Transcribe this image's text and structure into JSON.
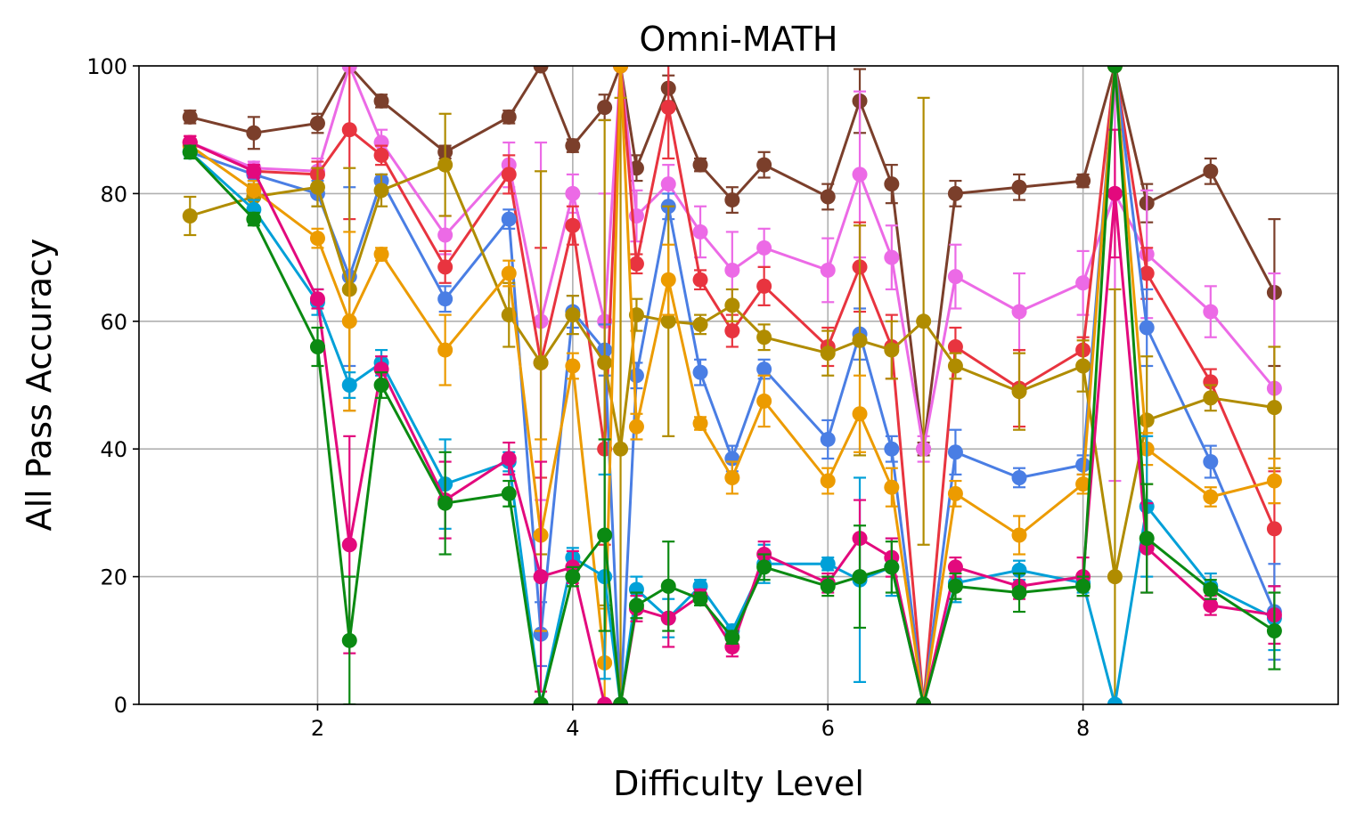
{
  "chart_data": {
    "type": "line",
    "title": "Omni-MATH",
    "xlabel": "Difficulty Level",
    "ylabel": "All Pass Accuracy",
    "xlim": [
      0.6,
      10.0
    ],
    "ylim": [
      0,
      100
    ],
    "xticks": [
      2,
      4,
      6,
      8
    ],
    "yticks": [
      0,
      20,
      40,
      60,
      80,
      100
    ],
    "grid": true,
    "x": [
      1.0,
      1.5,
      2.0,
      2.25,
      2.5,
      3.0,
      3.5,
      3.75,
      4.0,
      4.25,
      4.375,
      4.5,
      4.75,
      5.0,
      5.25,
      5.5,
      6.0,
      6.25,
      6.5,
      6.75,
      7.0,
      7.5,
      8.0,
      8.25,
      8.5,
      9.0,
      9.5
    ],
    "series": [
      {
        "name": "series-brown",
        "color": "#7b3f2b",
        "values": [
          92,
          89.5,
          91,
          100,
          94.5,
          86.5,
          92,
          100,
          87.5,
          93.5,
          100,
          84,
          96.5,
          84.5,
          79,
          84.5,
          79.5,
          94.5,
          81.5,
          40,
          80,
          81,
          82,
          100,
          78.5,
          83.5,
          64.5
        ],
        "errors": [
          1,
          2.5,
          1.5,
          0,
          1,
          1,
          1,
          0,
          1,
          2,
          0,
          2,
          2,
          1,
          2,
          2,
          2,
          5,
          3,
          1,
          2,
          2,
          1,
          0,
          3,
          2,
          11.5
        ]
      },
      {
        "name": "series-violet",
        "color": "#ec6ae6",
        "values": [
          88,
          84,
          83.5,
          100,
          88,
          73.5,
          84.5,
          60,
          80,
          60,
          100,
          76.5,
          81.5,
          74,
          68,
          71.5,
          68,
          83,
          70,
          40,
          67,
          61.5,
          66,
          80,
          70.5,
          61.5,
          49.5
        ],
        "errors": [
          1,
          1,
          2,
          0,
          2,
          3,
          3.5,
          28,
          3,
          20,
          0,
          4,
          3,
          4,
          6,
          3,
          5,
          13,
          5,
          2,
          5,
          6,
          5,
          45,
          10,
          4,
          18
        ]
      },
      {
        "name": "series-red",
        "color": "#e8343f",
        "values": [
          88,
          83.5,
          83,
          90,
          86,
          68.5,
          83,
          53.5,
          75,
          40,
          100,
          69,
          93.5,
          66.5,
          58.5,
          65.5,
          56,
          68.5,
          56,
          0,
          56,
          49.5,
          55.5,
          100,
          67.5,
          50.5,
          27.5
        ],
        "errors": [
          1,
          1,
          2,
          14,
          1.5,
          2.5,
          3,
          18,
          3,
          15,
          0,
          1.5,
          8,
          1.5,
          2.5,
          3,
          3,
          7,
          5,
          0,
          3,
          6,
          2,
          0,
          4,
          2,
          9
        ]
      },
      {
        "name": "series-blue",
        "color": "#4a7ee4",
        "values": [
          86.5,
          83,
          80,
          67,
          82,
          63.5,
          76,
          11,
          61.5,
          55.5,
          0,
          51.5,
          78,
          52,
          38.5,
          52.5,
          41.5,
          58,
          40,
          0,
          39.5,
          35.5,
          37.5,
          100,
          59,
          38,
          14.5
        ],
        "errors": [
          1,
          1,
          2,
          14,
          1,
          2,
          1.5,
          5,
          2.5,
          4,
          0,
          2,
          2,
          2,
          2,
          1.5,
          3,
          4,
          2,
          0,
          3.5,
          1.5,
          1.5,
          0,
          6,
          2.5,
          7.5
        ]
      },
      {
        "name": "series-gold",
        "color": "#b08c00",
        "values": [
          76.5,
          79.5,
          81,
          65,
          80.5,
          84.5,
          61,
          53.5,
          61,
          53.5,
          40,
          61,
          60,
          59.5,
          62.5,
          57.5,
          55,
          57,
          55.5,
          60,
          53,
          49,
          53,
          20,
          44.5,
          48,
          46.5
        ],
        "errors": [
          3,
          2,
          3,
          19,
          2.5,
          8,
          5,
          30,
          3,
          38,
          55,
          2.5,
          18,
          1.5,
          2.5,
          2,
          3.5,
          18,
          4.5,
          35,
          2,
          6,
          4,
          45,
          10,
          2,
          9.5
        ]
      },
      {
        "name": "series-orange",
        "color": "#ec9b00",
        "values": [
          87.5,
          80.5,
          73,
          60,
          70.5,
          55.5,
          67.5,
          26.5,
          53,
          6.5,
          100,
          43.5,
          66.5,
          44,
          35.5,
          47.5,
          35,
          45.5,
          34,
          0,
          33,
          26.5,
          34.5,
          100,
          40,
          32.5,
          35
        ],
        "errors": [
          1,
          1.5,
          1.5,
          14,
          1,
          5.5,
          2,
          15,
          2,
          8.5,
          0,
          2,
          5.5,
          1,
          2.5,
          4,
          2,
          6,
          3,
          0,
          2,
          3,
          1.5,
          0,
          2.5,
          1.5,
          3.5
        ]
      },
      {
        "name": "series-cyan",
        "color": "#00a0d8",
        "values": [
          86.5,
          77.5,
          63,
          50,
          53.5,
          34.5,
          38,
          0,
          23,
          20,
          0,
          18,
          13.5,
          18.5,
          11.5,
          22,
          22,
          19.5,
          21.5,
          0,
          19,
          21,
          19,
          0,
          31,
          18.5,
          13.5
        ],
        "errors": [
          1,
          1.5,
          2,
          2,
          2,
          7,
          1.5,
          0,
          1.5,
          16,
          0,
          2,
          3,
          1,
          1,
          3,
          1,
          16,
          4.5,
          0,
          3,
          1.5,
          1.5,
          0,
          11,
          2,
          5
        ]
      },
      {
        "name": "series-magenta",
        "color": "#e3097d",
        "values": [
          88,
          83.5,
          63.5,
          25,
          52.5,
          32,
          38.5,
          20,
          21.5,
          0,
          0,
          15,
          13.5,
          17,
          9,
          23.5,
          19,
          26,
          23,
          0,
          21.5,
          18.5,
          20,
          80,
          24.5,
          15.5,
          14
        ],
        "errors": [
          1,
          1,
          1.5,
          17,
          2,
          6,
          2.5,
          18,
          2.5,
          0,
          0,
          2,
          4.5,
          1,
          1.5,
          2,
          1.5,
          6,
          3,
          0,
          1.5,
          2,
          3,
          10,
          7,
          1.5,
          4.5
        ]
      },
      {
        "name": "series-green",
        "color": "#0b8a12",
        "values": [
          86.5,
          76,
          56,
          10,
          50,
          31.5,
          33,
          0,
          20,
          26.5,
          0,
          15.5,
          18.5,
          16.5,
          10.5,
          21.5,
          18.5,
          20,
          21.5,
          0,
          18.5,
          17.5,
          18.5,
          100,
          26,
          18,
          11.5
        ],
        "errors": [
          1,
          1,
          3,
          10,
          2,
          8,
          2,
          0,
          1.5,
          15,
          0,
          2,
          7,
          1,
          1,
          2,
          1.5,
          8,
          4,
          0,
          2,
          3,
          1.5,
          0,
          8.5,
          1.5,
          6
        ]
      }
    ]
  }
}
